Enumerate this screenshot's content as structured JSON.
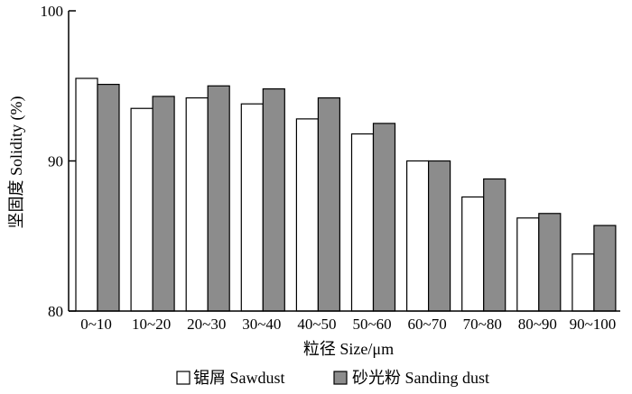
{
  "chart_data": {
    "type": "bar",
    "categories": [
      "0~10",
      "10~20",
      "20~30",
      "30~40",
      "40~50",
      "50~60",
      "60~70",
      "70~80",
      "80~90",
      "90~100"
    ],
    "series": [
      {
        "name": "锯屑 Sawdust",
        "color": "#ffffff",
        "values": [
          95.5,
          93.5,
          94.2,
          93.8,
          92.8,
          91.8,
          90.0,
          87.6,
          86.2,
          83.8
        ]
      },
      {
        "name": "砂光粉 Sanding dust",
        "color": "#8c8c8c",
        "values": [
          95.1,
          94.3,
          95.0,
          94.8,
          94.2,
          92.5,
          90.0,
          88.8,
          86.5,
          85.7
        ]
      }
    ],
    "xlabel": "粒径 Size/μm",
    "ylabel": "坚固度 Solidity (%)",
    "ylim": [
      80,
      100
    ],
    "yticks": [
      80,
      90,
      100
    ],
    "legend_position": "bottom",
    "grid": false
  }
}
